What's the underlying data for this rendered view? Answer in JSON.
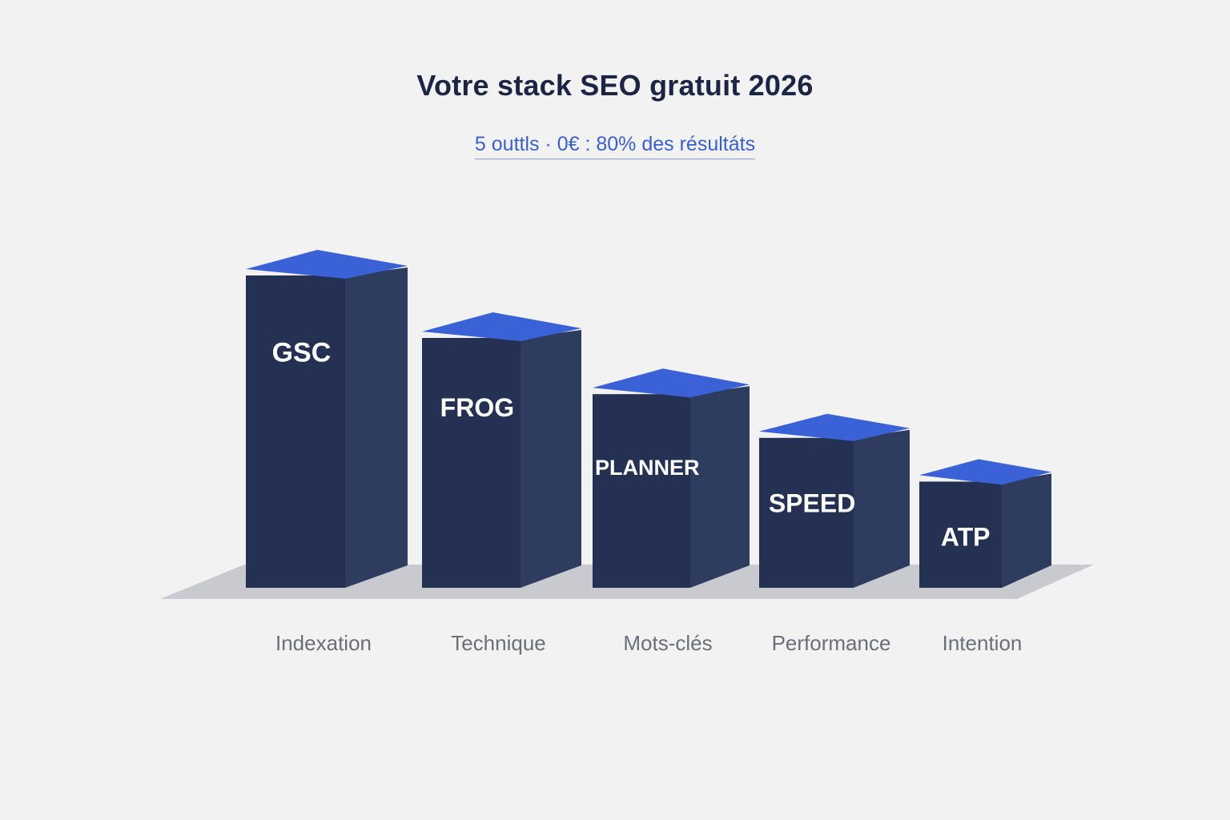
{
  "title": "Votre stack SEO gratuit 2026",
  "subtitle": "5 outtls · 0€ : 80% des résultáts",
  "colors": {
    "background": "#f2f2f2",
    "bar_front": "#243152",
    "bar_side": "#2e3c60",
    "bar_top": "#3a62d6",
    "floor": "#c9c9d0",
    "title": "#1c2644",
    "subtitle": "#3b5fc9",
    "category_label": "#6b6f78"
  },
  "chart_data": {
    "type": "bar",
    "style": "3d",
    "title": "Votre stack SEO gratuit 2026",
    "subtitle": "5 outtls · 0€ : 80% des résultáts",
    "categories": [
      "Indexation",
      "Technique",
      "Mots-clés",
      "Performance",
      "Intention"
    ],
    "bar_labels": [
      "GSC",
      "FROG",
      "PLANNER",
      "SPEED",
      "ATP"
    ],
    "values": [
      5,
      4,
      3.1,
      2.4,
      1.7
    ],
    "grid": false,
    "legend": "none"
  }
}
